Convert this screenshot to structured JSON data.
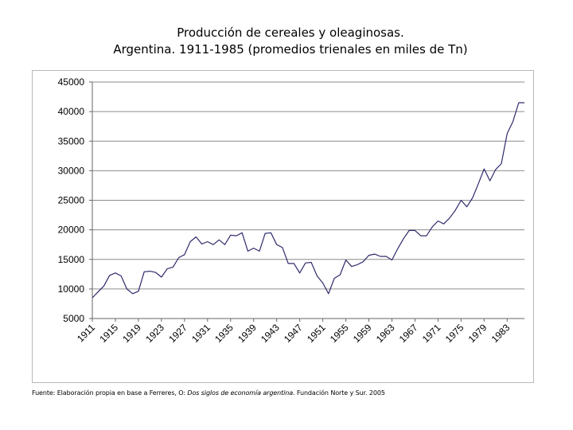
{
  "title": {
    "line1": "Producción de cereales y oleaginosas.",
    "line2": "Argentina. 1911-1985 (promedios trienales en miles de Tn)"
  },
  "source": {
    "prefix": "Fuente: Elaboración propia en base a Ferreres, O: ",
    "book": "Dos siglos de economía argentina",
    "suffix": ". Fundación Norte y Sur. 2005"
  },
  "chart_data": {
    "type": "line",
    "title": "Producción de cereales y oleaginosas. Argentina. 1911-1985 (promedios trienales en miles de Tn)",
    "xlabel": "",
    "ylabel": "",
    "ylim": [
      5000,
      45000
    ],
    "yticks": [
      5000,
      10000,
      15000,
      20000,
      25000,
      30000,
      35000,
      40000,
      45000
    ],
    "xticks": [
      "1911",
      "1915",
      "1919",
      "1923",
      "1927",
      "1931",
      "1935",
      "1939",
      "1943",
      "1947",
      "1951",
      "1955",
      "1959",
      "1963",
      "1967",
      "1971",
      "1975",
      "1979",
      "1983"
    ],
    "grid": true,
    "legend": "none",
    "line_color": "#2e2b6b",
    "series": [
      {
        "name": "Producción",
        "x": [
          1911,
          1912,
          1913,
          1914,
          1915,
          1916,
          1917,
          1918,
          1919,
          1920,
          1921,
          1922,
          1923,
          1924,
          1925,
          1926,
          1927,
          1928,
          1929,
          1930,
          1931,
          1932,
          1933,
          1934,
          1935,
          1936,
          1937,
          1938,
          1939,
          1940,
          1941,
          1942,
          1943,
          1944,
          1945,
          1946,
          1947,
          1948,
          1949,
          1950,
          1951,
          1952,
          1953,
          1954,
          1955,
          1956,
          1957,
          1958,
          1959,
          1960,
          1961,
          1962,
          1963,
          1964,
          1965,
          1966,
          1967,
          1968,
          1969,
          1970,
          1971,
          1972,
          1973,
          1974,
          1975,
          1976,
          1977,
          1978,
          1979,
          1980,
          1981,
          1982,
          1983,
          1984,
          1985,
          1986
        ],
        "values": [
          8500,
          9500,
          10500,
          12300,
          12700,
          12200,
          10000,
          9200,
          9600,
          12900,
          13000,
          12800,
          12000,
          13400,
          13700,
          15300,
          15800,
          18000,
          18800,
          17600,
          18000,
          17500,
          18300,
          17500,
          19100,
          19000,
          19500,
          16400,
          16900,
          16400,
          19400,
          19500,
          17500,
          17000,
          14300,
          14300,
          12700,
          14400,
          14500,
          12200,
          11000,
          9200,
          11800,
          12400,
          14900,
          13800,
          14100,
          14600,
          15700,
          15900,
          15500,
          15500,
          14900,
          16800,
          18500,
          19900,
          19900,
          19000,
          19000,
          20500,
          21500,
          21000,
          22000,
          23300,
          25000,
          23900,
          25400,
          27800,
          30300,
          28300,
          30200,
          31200,
          36300,
          38300,
          41500,
          41500
        ]
      }
    ]
  }
}
